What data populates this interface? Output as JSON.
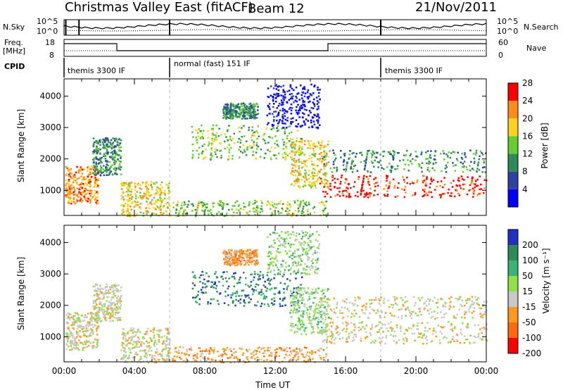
{
  "header": {
    "station": "Christmas Valley East (fitACF)",
    "beam": "Beam 12",
    "date": "21/Nov/2011"
  },
  "params": {
    "nsky_label": "N.Sky",
    "nsky_ticks": [
      "10^5",
      "10^0"
    ],
    "nsearch_label": "N.Search",
    "nsearch_ticks": [
      "10^5",
      "10^0"
    ],
    "freq_label_1": "Freq.",
    "freq_label_2": "[MHz]",
    "freq_ticks": [
      "18",
      "8"
    ],
    "nave_label": "Nave",
    "nave_ticks": [
      "60",
      "0"
    ],
    "cpid_label": "CPID",
    "cpid_segments": [
      {
        "label": "themis 3300 IF",
        "start_h": 0,
        "end_h": 6
      },
      {
        "label": "normal (fast) 151 IF",
        "start_h": 6,
        "end_h": 18
      },
      {
        "label": "themis 3300 IF",
        "start_h": 18,
        "end_h": 24
      }
    ]
  },
  "chart_data": [
    {
      "type": "heatmap",
      "name": "power",
      "ylabel": "Slant Range [km]",
      "yticks": [
        1000,
        2000,
        3000,
        4000
      ],
      "ylim": [
        200,
        4550
      ],
      "xlim": [
        0,
        24
      ],
      "colorbar_label": "Power [dB]",
      "colorbar_ticks": [
        "4",
        "8",
        "12",
        "16",
        "20",
        "24",
        "28"
      ],
      "colors": [
        "#0000ff",
        "#3040a0",
        "#2e8b57",
        "#66cc33",
        "#ffd21f",
        "#ff8c1a",
        "#ff0000"
      ]
    },
    {
      "type": "heatmap",
      "name": "velocity",
      "ylabel": "Slant Range [km]",
      "yticks": [
        1000,
        2000,
        3000,
        4000
      ],
      "ylim": [
        200,
        4550
      ],
      "xlim": [
        0,
        24
      ],
      "xlabel": "Time UT",
      "xtick_labels": [
        "00:00",
        "04:00",
        "08:00",
        "12:00",
        "16:00",
        "20:00",
        "00:00"
      ],
      "colorbar_label": "Velocity [m s⁻¹]",
      "colorbar_ticks": [
        "200",
        "100",
        "50",
        "15",
        "-15",
        "-50",
        "-100",
        "-200"
      ],
      "colors": [
        "#2030c0",
        "#2e8b57",
        "#3cb371",
        "#8fe04a",
        "#c8c8c8",
        "#ff9a1a",
        "#ff6a10",
        "#ff0000"
      ]
    }
  ]
}
